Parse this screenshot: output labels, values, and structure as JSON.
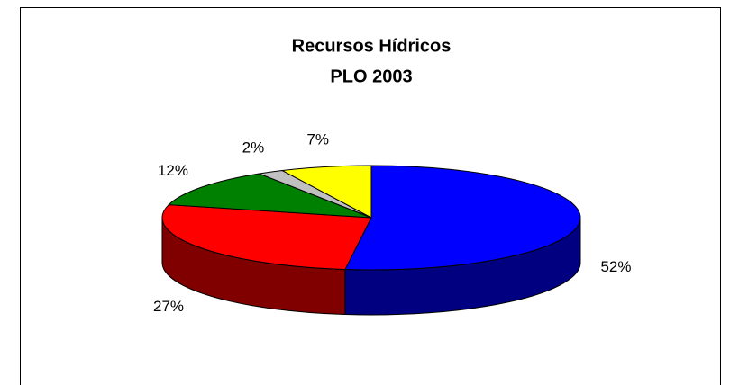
{
  "chart_data": {
    "type": "pie",
    "title": "Recursos Hídricos",
    "subtitle": "PLO 2003",
    "values": [
      52,
      27,
      12,
      2,
      7
    ],
    "value_labels": [
      "52%",
      "27%",
      "12%",
      "2%",
      "7%"
    ],
    "colors": [
      "#0000ff",
      "#ff0000",
      "#008000",
      "#c0c0c0",
      "#ffff00"
    ]
  }
}
